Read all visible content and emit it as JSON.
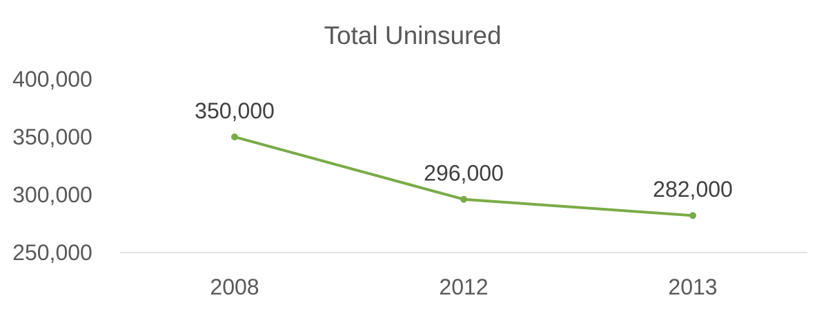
{
  "chart_data": {
    "type": "line",
    "title": "Total Uninsured",
    "xlabel": "",
    "ylabel": "",
    "categories": [
      "2008",
      "2012",
      "2013"
    ],
    "series": [
      {
        "values": [
          350000,
          296000,
          282000
        ],
        "data_labels": [
          "350,000",
          "296,000",
          "282,000"
        ],
        "color": "#7aab48"
      }
    ],
    "ylim": [
      250000,
      400000
    ],
    "y_ticks": [
      250000,
      300000,
      350000,
      400000
    ],
    "y_tick_labels": [
      "250,000",
      "300,000",
      "350,000",
      "400,000"
    ],
    "grid": false,
    "legend": "none",
    "axis_line_color": "#d9d9d9"
  }
}
